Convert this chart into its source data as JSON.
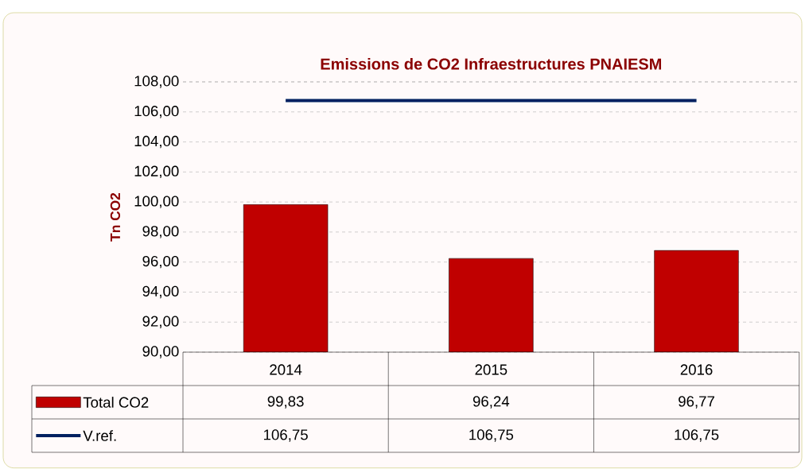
{
  "chart_data": {
    "type": "bar",
    "title": "Emissions de CO2 Infraestructures PNAIESM",
    "ylabel": "Tn CO2",
    "categories": [
      "2014",
      "2015",
      "2016"
    ],
    "series": [
      {
        "name": "Total CO2",
        "color": "#c00000",
        "values": [
          99.83,
          96.24,
          96.77
        ],
        "value_labels": [
          "99,83",
          "96,24",
          "96,77"
        ]
      },
      {
        "name": "V.ref.",
        "type": "line",
        "color": "#002060",
        "values": [
          106.75,
          106.75,
          106.75
        ],
        "value_labels": [
          "106,75",
          "106,75",
          "106,75"
        ]
      }
    ],
    "ylim": [
      90,
      108
    ],
    "yticks": [
      {
        "value": 90,
        "label": "90,00"
      },
      {
        "value": 92,
        "label": "92,00"
      },
      {
        "value": 94,
        "label": "94,00"
      },
      {
        "value": 96,
        "label": "96,00"
      },
      {
        "value": 98,
        "label": "98,00"
      },
      {
        "value": 100,
        "label": "100,00"
      },
      {
        "value": 102,
        "label": "102,00"
      },
      {
        "value": 104,
        "label": "104,00"
      },
      {
        "value": 106,
        "label": "106,00"
      },
      {
        "value": 108,
        "label": "108,00"
      }
    ],
    "grid": "y",
    "legend": "bottom",
    "marker": "none"
  }
}
